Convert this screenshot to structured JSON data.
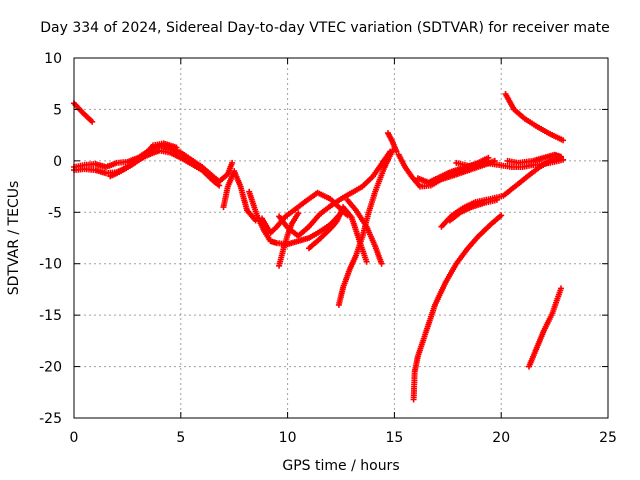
{
  "colors": {
    "series": "#ff0000",
    "grid": "#a0a0a0",
    "axis": "#000000"
  },
  "chart_data": {
    "type": "scatter",
    "title": "Day 334 of 2024, Sidereal Day-to-day VTEC variation (SDTVAR) for receiver mate",
    "xlabel": "GPS time / hours",
    "ylabel": "SDTVAR / TECUs",
    "xlim": [
      0,
      25
    ],
    "ylim": [
      -25,
      10
    ],
    "xticks": [
      "0",
      "5",
      "10",
      "15",
      "20",
      "25"
    ],
    "yticks": [
      "10",
      "5",
      "0",
      "-5",
      "-10",
      "-15",
      "-20",
      "-25"
    ],
    "grid": true,
    "marker": "+",
    "series": [
      {
        "color": "#ff0000",
        "tracks": [
          [
            [
              0,
              5.6
            ],
            [
              0.4,
              4.7
            ],
            [
              0.85,
              3.8
            ]
          ],
          [
            [
              0,
              -0.6
            ],
            [
              0.5,
              -0.4
            ],
            [
              1,
              -0.3
            ],
            [
              1.5,
              -0.6
            ],
            [
              2,
              -0.2
            ],
            [
              2.5,
              -0.1
            ],
            [
              3,
              0.3
            ],
            [
              3.5,
              1
            ],
            [
              4,
              1.5
            ],
            [
              4.5,
              1.2
            ],
            [
              5,
              0.8
            ],
            [
              5.5,
              0.1
            ],
            [
              6,
              -0.6
            ],
            [
              6.5,
              -1.5
            ],
            [
              6.8,
              -2
            ],
            [
              7.2,
              -1.3
            ],
            [
              7.4,
              -0.2
            ]
          ],
          [
            [
              0,
              -0.9
            ],
            [
              0.5,
              -0.8
            ],
            [
              1,
              -0.9
            ],
            [
              1.5,
              -1.2
            ],
            [
              2,
              -1.1
            ],
            [
              2.5,
              -0.6
            ],
            [
              3,
              0.1
            ],
            [
              3.5,
              0.6
            ],
            [
              4,
              1
            ],
            [
              4.5,
              0.8
            ],
            [
              5,
              0.3
            ],
            [
              5.5,
              -0.3
            ],
            [
              6,
              -0.9
            ],
            [
              6.5,
              -1.9
            ],
            [
              6.8,
              -2.4
            ]
          ],
          [
            [
              1.7,
              -1.5
            ],
            [
              2.2,
              -1
            ],
            [
              2.7,
              -0.4
            ],
            [
              3.2,
              0.3
            ],
            [
              3.7,
              1.5
            ],
            [
              4.2,
              1.7
            ],
            [
              4.8,
              1.3
            ]
          ],
          [
            [
              7,
              -4.5
            ],
            [
              7.2,
              -2.5
            ],
            [
              7.5,
              -1
            ],
            [
              7.8,
              -2.5
            ],
            [
              8.1,
              -4.8
            ],
            [
              8.5,
              -5.8
            ]
          ],
          [
            [
              8.2,
              -3
            ],
            [
              8.6,
              -5.5
            ],
            [
              8.9,
              -6.8
            ],
            [
              9.2,
              -7.8
            ],
            [
              9.5,
              -8
            ],
            [
              10,
              -8.1
            ],
            [
              10.5,
              -7.8
            ],
            [
              11,
              -7.5
            ],
            [
              11.5,
              -6.9
            ],
            [
              12,
              -6.2
            ],
            [
              12.5,
              -5.1
            ]
          ],
          [
            [
              8.8,
              -5.6
            ],
            [
              9.2,
              -7
            ],
            [
              9.5,
              -6.4
            ],
            [
              9.9,
              -5.4
            ],
            [
              10.3,
              -4.8
            ],
            [
              10.8,
              -4
            ],
            [
              11.4,
              -3.1
            ],
            [
              12,
              -3.7
            ],
            [
              12.8,
              -5.3
            ]
          ],
          [
            [
              9.6,
              -10.2
            ],
            [
              9.8,
              -8.6
            ],
            [
              10,
              -7.2
            ],
            [
              10.2,
              -6.1
            ],
            [
              10.5,
              -5.1
            ]
          ],
          [
            [
              9.6,
              -5.4
            ],
            [
              10,
              -6.5
            ],
            [
              10.5,
              -7.3
            ],
            [
              11,
              -6.4
            ],
            [
              11.5,
              -5.2
            ],
            [
              12,
              -4.4
            ],
            [
              12.5,
              -3.7
            ],
            [
              13,
              -3.1
            ],
            [
              13.5,
              -2.5
            ],
            [
              14,
              -1.5
            ],
            [
              14.4,
              -0.3
            ],
            [
              14.8,
              0.9
            ]
          ],
          [
            [
              11,
              -8.5
            ],
            [
              11.5,
              -7.6
            ],
            [
              12,
              -6.6
            ],
            [
              12.3,
              -5.9
            ],
            [
              12.6,
              -4.5
            ],
            [
              13,
              -5.5
            ],
            [
              13.4,
              -8
            ],
            [
              13.7,
              -9.8
            ]
          ],
          [
            [
              12.4,
              -14
            ],
            [
              12.6,
              -12.3
            ],
            [
              12.9,
              -10.6
            ],
            [
              13.2,
              -9.2
            ],
            [
              13.5,
              -7.4
            ],
            [
              13.8,
              -5
            ],
            [
              14.1,
              -3
            ],
            [
              14.5,
              -0.8
            ],
            [
              14.9,
              1
            ]
          ],
          [
            [
              12.8,
              -3.8
            ],
            [
              13.2,
              -4.8
            ],
            [
              13.7,
              -6.4
            ],
            [
              14.1,
              -8.3
            ],
            [
              14.4,
              -10
            ]
          ],
          [
            [
              14.7,
              2.7
            ],
            [
              14.9,
              1.9
            ],
            [
              15.1,
              0.9
            ]
          ],
          [
            [
              15.2,
              0.6
            ],
            [
              15.5,
              -0.6
            ],
            [
              15.8,
              -1.5
            ],
            [
              16.2,
              -2.5
            ],
            [
              16.7,
              -2.4
            ],
            [
              17.2,
              -1.8
            ],
            [
              17.8,
              -1.4
            ],
            [
              18.5,
              -0.9
            ],
            [
              19.2,
              -0.4
            ],
            [
              19.7,
              0
            ]
          ],
          [
            [
              16.1,
              -1.7
            ],
            [
              16.6,
              -2.1
            ],
            [
              17.1,
              -1.6
            ],
            [
              17.6,
              -1.1
            ],
            [
              18.2,
              -0.7
            ],
            [
              18.8,
              -0.3
            ],
            [
              19.4,
              0.3
            ]
          ],
          [
            [
              17.9,
              -0.2
            ],
            [
              18.5,
              -0.5
            ],
            [
              19.2,
              -0.2
            ],
            [
              19.9,
              -0.4
            ],
            [
              20.5,
              -0.6
            ],
            [
              21,
              -0.6
            ],
            [
              21.5,
              -0.4
            ],
            [
              22,
              -0.3
            ],
            [
              22.5,
              -0.1
            ],
            [
              22.9,
              0.1
            ]
          ],
          [
            [
              20.3,
              0
            ],
            [
              20.8,
              -0.2
            ],
            [
              21.5,
              0
            ],
            [
              22,
              0.3
            ],
            [
              22.5,
              0.6
            ],
            [
              22.8,
              0.4
            ]
          ],
          [
            [
              20.2,
              6.5
            ],
            [
              20.6,
              5
            ],
            [
              21.1,
              4.1
            ],
            [
              21.7,
              3.3
            ],
            [
              22.3,
              2.6
            ],
            [
              22.9,
              2
            ]
          ],
          [
            [
              17.2,
              -6.4
            ],
            [
              17.7,
              -5.3
            ],
            [
              18.2,
              -4.6
            ],
            [
              18.8,
              -4
            ],
            [
              19.5,
              -3.7
            ],
            [
              20.1,
              -3.4
            ],
            [
              20.7,
              -2.4
            ],
            [
              21.3,
              -1.4
            ],
            [
              21.8,
              -0.6
            ],
            [
              22.3,
              0
            ],
            [
              22.8,
              0.3
            ]
          ],
          [
            [
              17.6,
              -5.8
            ],
            [
              18.1,
              -5
            ],
            [
              18.6,
              -4.5
            ],
            [
              19.2,
              -4.1
            ],
            [
              19.8,
              -3.8
            ]
          ],
          [
            [
              15.9,
              -23.2
            ],
            [
              15.95,
              -20.5
            ],
            [
              16.1,
              -19
            ],
            [
              16.5,
              -16.5
            ],
            [
              16.9,
              -14
            ],
            [
              17.4,
              -11.8
            ],
            [
              17.9,
              -10
            ],
            [
              18.4,
              -8.6
            ],
            [
              18.9,
              -7.4
            ],
            [
              19.5,
              -6.2
            ],
            [
              20,
              -5.3
            ]
          ],
          [
            [
              21.3,
              -20
            ],
            [
              21.6,
              -18.5
            ],
            [
              22,
              -16.5
            ],
            [
              22.4,
              -14.8
            ],
            [
              22.8,
              -12.4
            ]
          ]
        ]
      }
    ]
  }
}
